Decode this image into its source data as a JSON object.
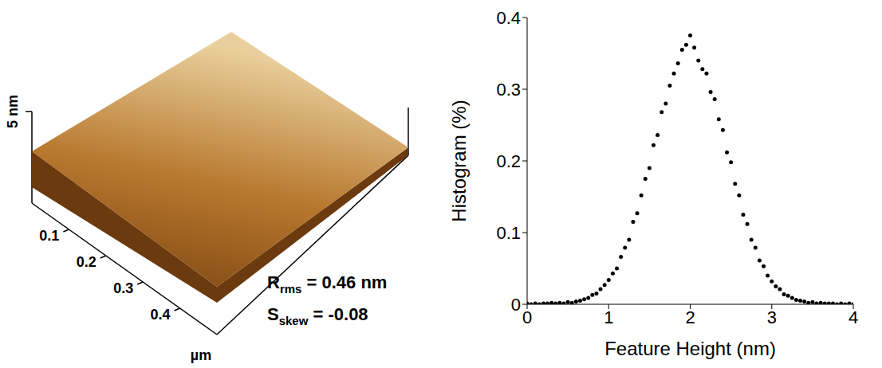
{
  "chart_data": [
    {
      "type": "surface",
      "zlim": [
        0,
        5
      ],
      "zticks": [
        {
          "value": 5,
          "label": "5 nm"
        }
      ],
      "xlim": [
        0,
        0.5
      ],
      "xticks": [
        0.1,
        0.2,
        0.3,
        0.4
      ],
      "x_unit": "µm",
      "annotations": [
        {
          "symbol": "R",
          "subscript": "rms",
          "text": " = 0.46 nm"
        },
        {
          "symbol": "S",
          "subscript": "skew",
          "text": " = -0.08"
        }
      ]
    },
    {
      "type": "scatter",
      "x_label": "Feature Height (nm)",
      "y_label": "Histogram (%)",
      "xlim": [
        0,
        4
      ],
      "xticks": [
        0,
        1,
        2,
        3,
        4
      ],
      "ylim": [
        0,
        0.4
      ],
      "yticks": [
        0,
        0.1,
        0.2,
        0.3,
        0.4
      ],
      "color": "#000000",
      "marker": "circle",
      "x": [
        0,
        0.05,
        0.1,
        0.15,
        0.2,
        0.25,
        0.3,
        0.35,
        0.4,
        0.45,
        0.5,
        0.55,
        0.6,
        0.65,
        0.7,
        0.75,
        0.8,
        0.85,
        0.9,
        0.95,
        1.0,
        1.05,
        1.1,
        1.15,
        1.2,
        1.25,
        1.3,
        1.35,
        1.4,
        1.45,
        1.5,
        1.55,
        1.6,
        1.65,
        1.7,
        1.75,
        1.8,
        1.85,
        1.9,
        1.95,
        2.0,
        2.05,
        2.1,
        2.15,
        2.2,
        2.25,
        2.3,
        2.35,
        2.4,
        2.45,
        2.5,
        2.55,
        2.6,
        2.65,
        2.7,
        2.75,
        2.8,
        2.85,
        2.9,
        2.95,
        3.0,
        3.05,
        3.1,
        3.15,
        3.2,
        3.25,
        3.3,
        3.35,
        3.4,
        3.45,
        3.5,
        3.55,
        3.6,
        3.65,
        3.7,
        3.75,
        3.8,
        3.85,
        3.9,
        3.95,
        4.0
      ],
      "values": [
        0.001,
        0,
        0.001,
        0,
        0.001,
        0.001,
        0.002,
        0.001,
        0.002,
        0.001,
        0.003,
        0.002,
        0.004,
        0.005,
        0.007,
        0.009,
        0.013,
        0.015,
        0.021,
        0.027,
        0.034,
        0.043,
        0.05,
        0.066,
        0.079,
        0.09,
        0.115,
        0.127,
        0.152,
        0.175,
        0.19,
        0.222,
        0.236,
        0.268,
        0.28,
        0.305,
        0.322,
        0.336,
        0.355,
        0.362,
        0.375,
        0.358,
        0.34,
        0.328,
        0.322,
        0.296,
        0.286,
        0.258,
        0.243,
        0.212,
        0.198,
        0.168,
        0.152,
        0.125,
        0.112,
        0.09,
        0.079,
        0.061,
        0.053,
        0.04,
        0.032,
        0.025,
        0.021,
        0.014,
        0.012,
        0.009,
        0.006,
        0.005,
        0.004,
        0.002,
        0.003,
        0.001,
        0.002,
        0.001,
        0.001,
        0.001,
        0,
        0.001,
        0,
        0.001,
        0
      ]
    }
  ]
}
